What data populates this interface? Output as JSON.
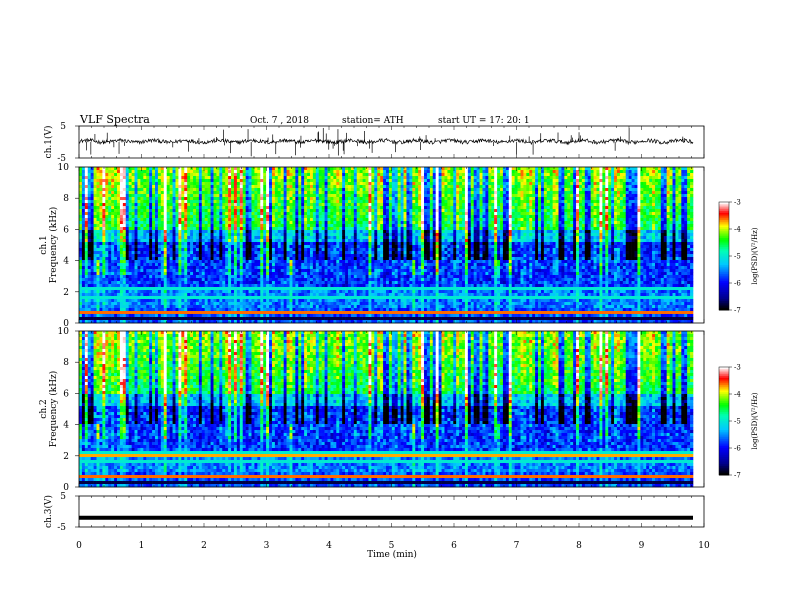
{
  "header": {
    "title": "VLF  Spectra",
    "date": "Oct. 7  , 2018",
    "station": "station= ATH",
    "start": "start  UT  =    17: 20: 1"
  },
  "colorbar": {
    "label": "log(PSD)(V²/Hz)",
    "ticks": [
      "-3",
      "-4",
      "-5",
      "-6",
      "-7"
    ],
    "colors": [
      "#ffffff",
      "#ff0000",
      "#ffff00",
      "#00ff00",
      "#00ffff",
      "#0000ff",
      "#000000"
    ]
  },
  "chart_data": [
    {
      "type": "line",
      "title": "VLF  Spectra",
      "ylabel": "ch.1(V)",
      "yticks": [
        "5",
        "-5"
      ],
      "ylim": [
        -5,
        5
      ],
      "xlim": [
        0,
        10
      ],
      "series": [
        {
          "values_note_free": true,
          "baseline": 0.2,
          "amplitude": 0.6
        }
      ]
    },
    {
      "type": "heatmap",
      "ylabel": "ch.1\nFrequency  (kHz)",
      "yticks": [
        "0",
        "2",
        "4",
        "6",
        "8",
        "10"
      ],
      "ylim": [
        0,
        10
      ],
      "xlim": [
        0,
        10
      ],
      "zlim": [
        -7,
        -3
      ]
    },
    {
      "type": "heatmap",
      "ylabel": "ch.2\nFrequency  (kHz)",
      "yticks": [
        "0",
        "2",
        "4",
        "6",
        "8",
        "10"
      ],
      "ylim": [
        0,
        10
      ],
      "xlim": [
        0,
        10
      ],
      "zlim": [
        -7,
        -3
      ]
    },
    {
      "type": "line",
      "ylabel": "ch.3(V)",
      "yticks": [
        "5",
        "-5"
      ],
      "ylim": [
        -5,
        5
      ],
      "xlim": [
        0,
        10
      ],
      "series": [
        {
          "constant": -2.0
        }
      ]
    }
  ],
  "xaxis": {
    "label": "Time  (min)",
    "ticks": [
      "0",
      "1",
      "2",
      "3",
      "4",
      "5",
      "6",
      "7",
      "8",
      "9",
      "10"
    ]
  }
}
